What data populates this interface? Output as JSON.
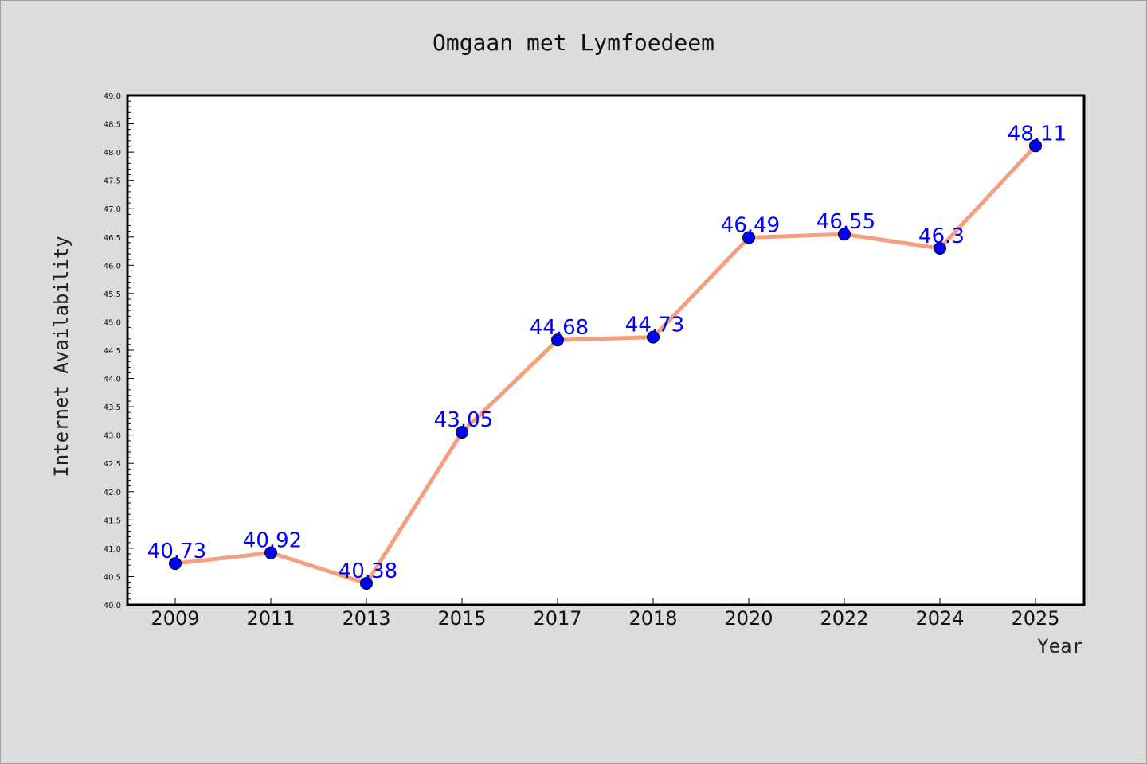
{
  "chart_data": {
    "type": "line",
    "title": "Omgaan met Lymfoedeem",
    "xlabel": "Year",
    "ylabel": "Internet Availability",
    "categories": [
      "2009",
      "2011",
      "2013",
      "2015",
      "2017",
      "2018",
      "2020",
      "2022",
      "2024",
      "2025"
    ],
    "series": [
      {
        "values": [
          40.73,
          40.92,
          40.38,
          43.05,
          44.68,
          44.73,
          46.49,
          46.55,
          46.3,
          48.11
        ],
        "data_labels": [
          "40.73",
          "40.92",
          "40.38",
          "43.05",
          "44.68",
          "44.73",
          "46.49",
          "46.55",
          "46.3",
          "48.11"
        ]
      }
    ],
    "ylim": [
      40.0,
      49.0
    ],
    "yticks": [
      "40.0",
      "40.5",
      "41.0",
      "41.5",
      "42.0",
      "42.5",
      "43.0",
      "43.5",
      "44.0",
      "44.5",
      "45.0",
      "45.5",
      "46.0",
      "46.5",
      "47.0",
      "47.5",
      "48.0",
      "48.5",
      "49.0"
    ],
    "grid": false,
    "colors": {
      "line": "#f4a07f",
      "marker": "#0000ff",
      "label": "#0000ff",
      "background": "#dcdcdc",
      "plot_background": "#ffffff"
    }
  }
}
